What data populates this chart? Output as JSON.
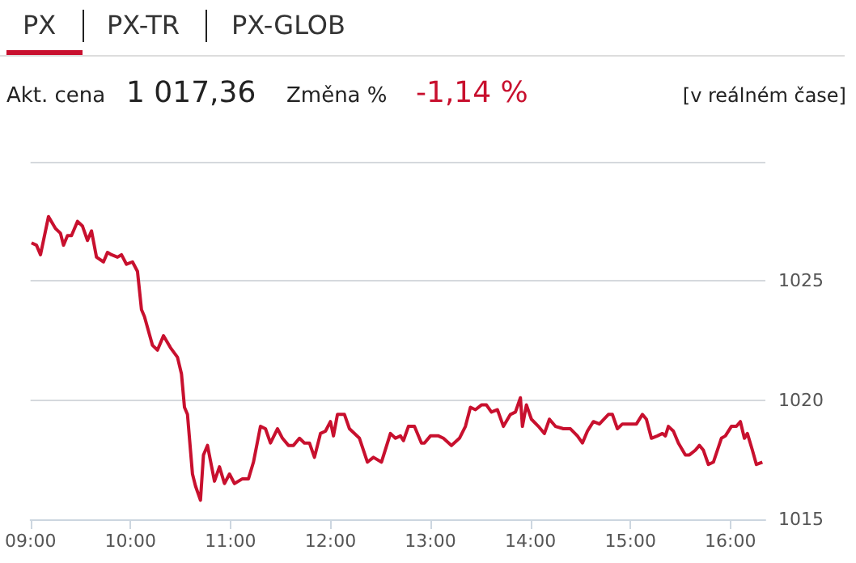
{
  "chart_data": {
    "type": "line",
    "annotations": [
      "PX",
      "PX-TR",
      "PX-GLOB",
      "Akt. cena",
      "1 017,36",
      "Změna %",
      "-1,14 %",
      "[v reálném čase]"
    ],
    "series": [
      {
        "color": "#c8102e",
        "x": [
          9.01,
          9.06,
          9.1,
          9.18,
          9.25,
          9.3,
          9.33,
          9.37,
          9.41,
          9.47,
          9.52,
          9.57,
          9.61,
          9.66,
          9.73,
          9.77,
          9.81,
          9.87,
          9.91,
          9.96,
          10.02,
          10.07,
          10.11,
          10.14,
          10.22,
          10.27,
          10.33,
          10.4,
          10.47,
          10.51,
          10.54,
          10.57,
          10.62,
          10.65,
          10.7,
          10.73,
          10.77,
          10.84,
          10.89,
          10.94,
          10.99,
          11.04,
          11.12,
          11.18,
          11.23,
          11.3,
          11.35,
          11.4,
          11.47,
          11.52,
          11.58,
          11.63,
          11.69,
          11.74,
          11.79,
          11.84,
          11.9,
          11.95,
          12.0,
          12.03,
          12.07,
          12.14,
          12.19,
          12.29,
          12.37,
          12.43,
          12.51,
          12.6,
          12.65,
          12.7,
          12.73,
          12.78,
          12.84,
          12.91,
          12.94,
          13.0,
          13.08,
          13.13,
          13.21,
          13.29,
          13.35,
          13.4,
          13.45,
          13.51,
          13.56,
          13.61,
          13.67,
          13.73,
          13.8,
          13.85,
          13.9,
          13.92,
          13.96,
          14.01,
          14.08,
          14.14,
          14.19,
          14.25,
          14.33,
          14.4,
          14.47,
          14.52,
          14.57,
          14.63,
          14.69,
          14.78,
          14.82,
          14.87,
          14.92,
          15.0,
          15.06,
          15.12,
          15.16,
          15.21,
          15.27,
          15.32,
          15.35,
          15.38,
          15.43,
          15.48,
          15.55,
          15.59,
          15.65,
          15.69,
          15.73,
          15.78,
          15.83,
          15.91,
          15.95,
          16.01,
          16.06,
          16.1,
          16.14,
          16.17,
          16.22,
          16.26,
          16.32
        ],
        "values": [
          1026.6,
          1026.5,
          1026.1,
          1027.7,
          1027.2,
          1027.0,
          1026.5,
          1026.9,
          1026.9,
          1027.5,
          1027.3,
          1026.7,
          1027.1,
          1026.0,
          1025.8,
          1026.2,
          1026.1,
          1026.0,
          1026.1,
          1025.7,
          1025.8,
          1025.4,
          1023.8,
          1023.5,
          1022.3,
          1022.1,
          1022.7,
          1022.2,
          1021.8,
          1021.1,
          1019.7,
          1019.4,
          1016.9,
          1016.4,
          1015.8,
          1017.7,
          1018.1,
          1016.6,
          1017.2,
          1016.5,
          1016.9,
          1016.5,
          1016.7,
          1016.7,
          1017.4,
          1018.9,
          1018.8,
          1018.2,
          1018.8,
          1018.4,
          1018.1,
          1018.1,
          1018.4,
          1018.2,
          1018.2,
          1017.6,
          1018.6,
          1018.7,
          1019.1,
          1018.5,
          1019.4,
          1019.4,
          1018.8,
          1018.4,
          1017.4,
          1017.6,
          1017.4,
          1018.6,
          1018.4,
          1018.5,
          1018.3,
          1018.9,
          1018.9,
          1018.2,
          1018.2,
          1018.5,
          1018.5,
          1018.4,
          1018.1,
          1018.4,
          1018.9,
          1019.7,
          1019.6,
          1019.8,
          1019.8,
          1019.5,
          1019.6,
          1018.9,
          1019.4,
          1019.5,
          1020.1,
          1018.9,
          1019.8,
          1019.2,
          1018.9,
          1018.6,
          1019.2,
          1018.9,
          1018.8,
          1018.8,
          1018.5,
          1018.2,
          1018.7,
          1019.1,
          1019.0,
          1019.4,
          1019.4,
          1018.8,
          1019.0,
          1019.0,
          1019.0,
          1019.4,
          1019.2,
          1018.4,
          1018.5,
          1018.6,
          1018.5,
          1018.9,
          1018.7,
          1018.2,
          1017.7,
          1017.7,
          1017.9,
          1018.1,
          1017.9,
          1017.3,
          1017.4,
          1018.4,
          1018.5,
          1018.9,
          1018.9,
          1019.1,
          1018.4,
          1018.6,
          1017.9,
          1017.3,
          1017.4
        ]
      }
    ],
    "xlim": [
      9,
      16.35
    ],
    "xticks": [
      {
        "value": 9,
        "label": "09:00"
      },
      {
        "value": 10,
        "label": "10:00"
      },
      {
        "value": 11,
        "label": "11:00"
      },
      {
        "value": 12,
        "label": "12:00"
      },
      {
        "value": 13,
        "label": "13:00"
      },
      {
        "value": 14,
        "label": "14:00"
      },
      {
        "value": 15,
        "label": "15:00"
      },
      {
        "value": 16,
        "label": "16:00"
      }
    ],
    "ylim": [
      1015,
      1030
    ],
    "yticks": [
      1015,
      1020,
      1025,
      {
        "value": 1030,
        "label": null
      }
    ],
    "grid": "y",
    "marker": "none",
    "line_style": "solid"
  }
}
